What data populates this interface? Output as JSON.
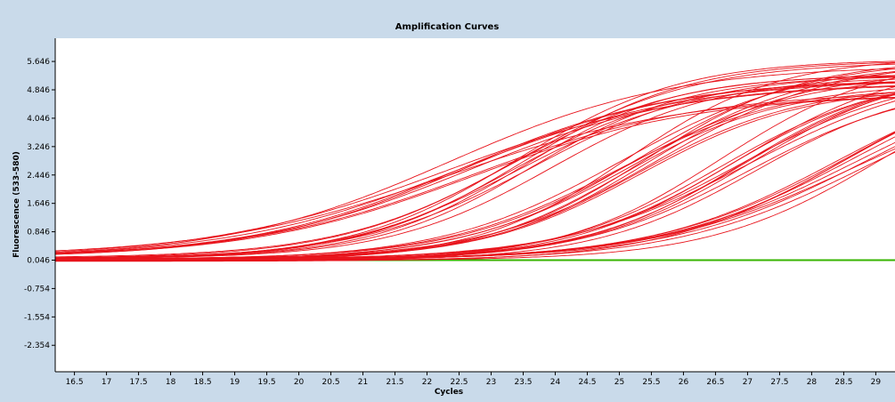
{
  "chart_data": {
    "type": "line",
    "title": "Amplification Curves",
    "xlabel": "Cycles",
    "ylabel": "Fluorescence (533-580)",
    "xlim": [
      16.2,
      29.3
    ],
    "ylim": [
      -3.1,
      6.3
    ],
    "xticks": [
      "16.5",
      "17",
      "17.5",
      "18",
      "18.5",
      "19",
      "19.5",
      "20",
      "20.5",
      "21",
      "21.5",
      "22",
      "22.5",
      "23",
      "23.5",
      "24",
      "24.5",
      "25",
      "25.5",
      "26",
      "26.5",
      "27",
      "27.5",
      "28",
      "28.5",
      "29"
    ],
    "yticks": [
      "5.646",
      "4.846",
      "4.046",
      "3.246",
      "2.446",
      "1.646",
      "0.846",
      "0.046",
      "-0.754",
      "-1.554",
      "-2.354"
    ],
    "grid": false,
    "legend": "none",
    "colors": {
      "amplification": "#e8141c",
      "baseline": "#37b400"
    },
    "groups": [
      {
        "name": "",
        "count": 9,
        "curve": {
          "baseline": 0.12,
          "amplitude": 5.0,
          "midpoint": 22.6,
          "slope": 1.75
        }
      },
      {
        "name": "",
        "count": 10,
        "curve": {
          "baseline": 0.08,
          "amplitude": 5.3,
          "midpoint": 23.6,
          "slope": 1.3
        }
      },
      {
        "name": "",
        "count": 12,
        "curve": {
          "baseline": 0.06,
          "amplitude": 5.3,
          "midpoint": 25.3,
          "slope": 1.3
        }
      },
      {
        "name": "",
        "count": 11,
        "curve": {
          "baseline": 0.05,
          "amplitude": 5.4,
          "midpoint": 26.9,
          "slope": 1.35
        }
      },
      {
        "name": "",
        "count": 10,
        "curve": {
          "baseline": 0.04,
          "amplitude": 5.6,
          "midpoint": 28.7,
          "slope": 1.45
        }
      }
    ],
    "series": [
      {
        "name": "",
        "type": "baseline",
        "values": [
          0.046,
          0.046
        ]
      }
    ]
  }
}
